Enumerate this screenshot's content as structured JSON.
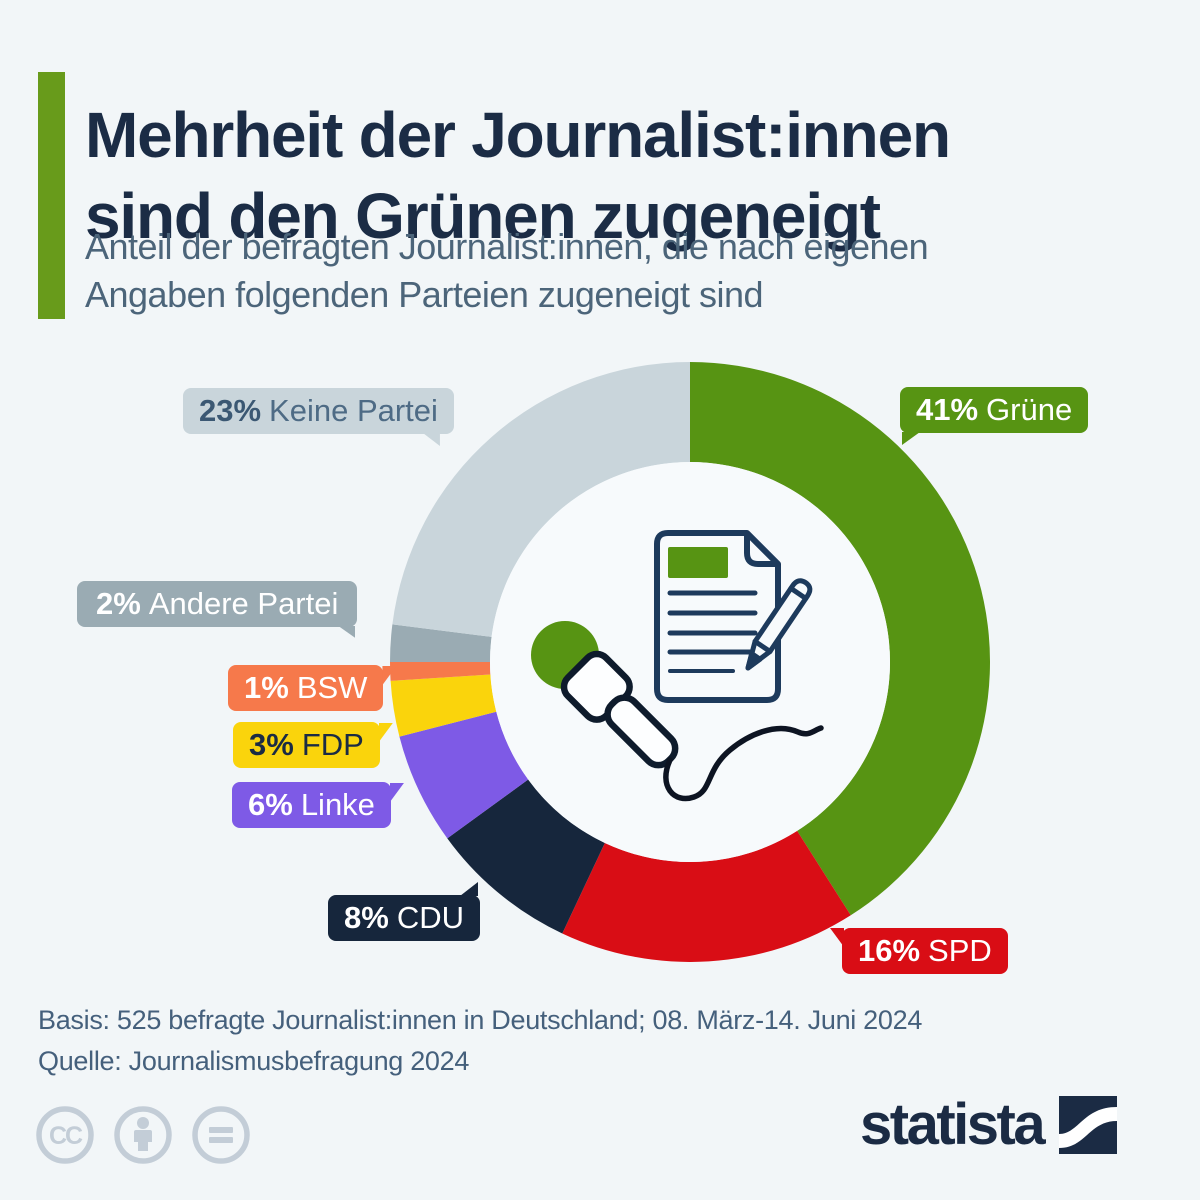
{
  "page": {
    "background": "#f2f6f8",
    "accent_color": "#689b1b"
  },
  "header": {
    "title_line1": "Mehrheit der Journalist:innen",
    "title_line2": "sind den Grünen zugeneigt",
    "subtitle_line1": "Anteil der befragten Journalist:innen, die nach eigenen",
    "subtitle_line2": "Angaben folgenden Parteien zugeneigt sind"
  },
  "chart_data": {
    "type": "pie",
    "donut": true,
    "start_angle_deg": 0,
    "direction": "clockwise",
    "unit": "%",
    "title": "Anteil der befragten Journalist:innen, die nach eigenen Angaben folgenden Parteien zugeneigt sind",
    "series": [
      {
        "label": "Grüne",
        "value": 41,
        "color": "#579413"
      },
      {
        "label": "SPD",
        "value": 16,
        "color": "#d90d15"
      },
      {
        "label": "CDU",
        "value": 8,
        "color": "#16263c"
      },
      {
        "label": "Linke",
        "value": 6,
        "color": "#7e5ae6"
      },
      {
        "label": "FDP",
        "value": 3,
        "color": "#fad40c"
      },
      {
        "label": "BSW",
        "value": 1,
        "color": "#f6794b"
      },
      {
        "label": "Andere Partei",
        "value": 2,
        "color": "#9aabb3"
      },
      {
        "label": "Keine Partei",
        "value": 23,
        "color": "#c9d5db"
      }
    ],
    "center_icon": "document-pencil-microphone-icon"
  },
  "callouts": {
    "gruene": {
      "pct": "41%",
      "name": "Grüne"
    },
    "spd": {
      "pct": "16%",
      "name": "SPD"
    },
    "cdu": {
      "pct": "8%",
      "name": "CDU"
    },
    "linke": {
      "pct": "6%",
      "name": "Linke"
    },
    "fdp": {
      "pct": "3%",
      "name": "FDP"
    },
    "bsw": {
      "pct": "1%",
      "name": "BSW"
    },
    "andere": {
      "pct": "2%",
      "name": "Andere Partei"
    },
    "keine": {
      "pct": "23%",
      "name": "Keine Partei"
    }
  },
  "footer": {
    "basis": "Basis: 525 befragte Journalist:innen in Deutschland; 08. März-14. Juni 2024",
    "quelle": "Quelle: Journalismusbefragung 2024"
  },
  "branding": {
    "logo_text": "statista",
    "logo_color": "#1b2b44",
    "cc_text": "CC",
    "license_icons": [
      "cc-icon",
      "attribution-person-icon",
      "no-derivatives-equals-icon"
    ],
    "license_icon_color": "#c3cdd7"
  }
}
